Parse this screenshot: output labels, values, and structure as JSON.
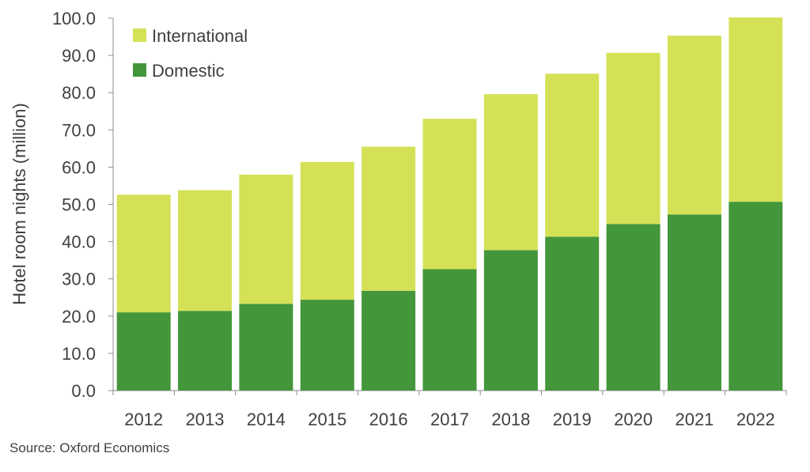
{
  "chart_data": {
    "type": "bar",
    "stacked": true,
    "title": "",
    "xlabel": "",
    "ylabel": "Hotel room nights (million)",
    "ylim": [
      0,
      100
    ],
    "ytick_step": 10,
    "ytick_decimals": 1,
    "grid": false,
    "legend_position": "top-left",
    "categories": [
      "2012",
      "2013",
      "2014",
      "2015",
      "2016",
      "2017",
      "2018",
      "2019",
      "2020",
      "2021",
      "2022"
    ],
    "series": [
      {
        "name": "Domestic",
        "color": "#43963a",
        "values": [
          21.0,
          21.4,
          23.3,
          24.4,
          26.8,
          32.6,
          37.7,
          41.3,
          44.7,
          47.3,
          50.7
        ]
      },
      {
        "name": "International",
        "color": "#d4e157",
        "values": [
          31.6,
          32.4,
          34.7,
          37.0,
          38.7,
          40.4,
          41.9,
          43.8,
          46.0,
          48.0,
          49.5
        ]
      }
    ],
    "legend_order": [
      "International",
      "Domestic"
    ]
  },
  "source": "Source:  Oxford Economics"
}
